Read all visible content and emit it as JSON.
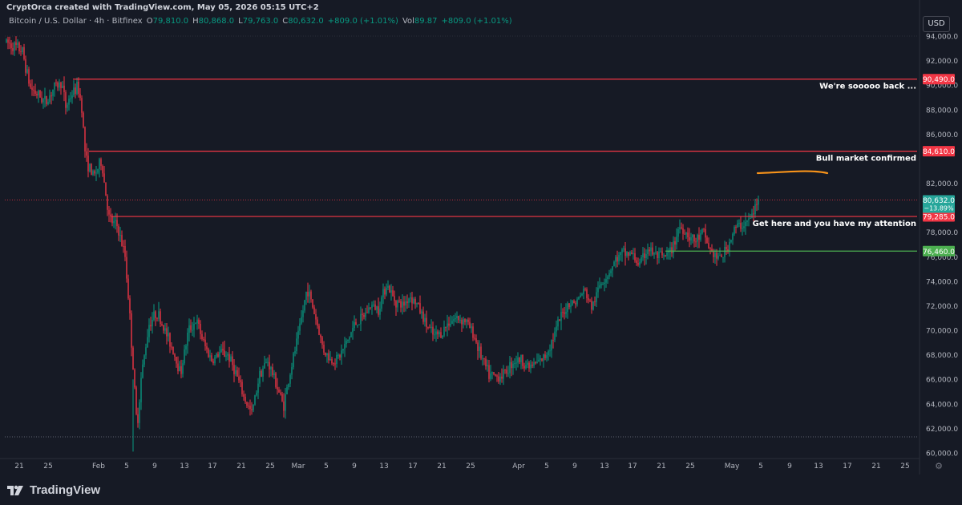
{
  "credit": "CryptOrca created with TradingView.com, May 05, 2026 05:15 UTC+2",
  "legend": {
    "symbol": "Bitcoin / U.S. Dollar · 4h · Bitfinex",
    "o_label": "O",
    "o_value": "79,810.0",
    "h_label": "H",
    "h_value": "80,868.0",
    "l_label": "L",
    "l_value": "79,763.0",
    "c_label": "C",
    "c_value": "80,632.0",
    "change": "+809.0 (+1.01%)",
    "vol_label": "Vol",
    "vol_value": "89.87",
    "vol_change": "+809.0 (+1.01%)"
  },
  "currency": "USD",
  "brand": "TradingView",
  "colors": {
    "background": "#161A25",
    "up": "#089981",
    "down": "#F23645",
    "resistance": "#F23645",
    "support": "#4CAF50",
    "current_price": "#26A69A",
    "annotation_stroke": "#F7931A",
    "text": "#B2B5BE"
  },
  "chart_data": {
    "type": "candlestick",
    "ylim": [
      59800,
      94200
    ],
    "yticks": [
      "60,000.0",
      "62,000.0",
      "64,000.0",
      "66,000.0",
      "68,000.0",
      "70,000.0",
      "72,000.0",
      "74,000.0",
      "76,000.0",
      "78,000.0",
      "82,000.0",
      "86,000.0",
      "88,000.0",
      "90,000.0",
      "92,000.0",
      "94,000.0"
    ],
    "xticks": [
      "21",
      "25",
      "Feb",
      "5",
      "9",
      "13",
      "17",
      "21",
      "25",
      "Mar",
      "5",
      "9",
      "13",
      "17",
      "21",
      "25",
      "Apr",
      "5",
      "9",
      "13",
      "17",
      "21",
      "25",
      "May",
      "5",
      "9",
      "13",
      "17",
      "21",
      "25"
    ],
    "current_price": {
      "value": 80632,
      "label": "80,632.0",
      "change": "−13.89%"
    },
    "levels": [
      {
        "value": 90490,
        "label": "90,490.0",
        "text": "We're sooooo back ...",
        "color": "resistance"
      },
      {
        "value": 84610,
        "label": "84,610.0",
        "text": "Bull market confirmed",
        "color": "resistance"
      },
      {
        "value": 79285,
        "label": "79,285.0",
        "text": "Get here and you have my attention",
        "color": "resistance"
      },
      {
        "value": 76460,
        "label": "76,460.0",
        "text": "",
        "color": "support"
      }
    ],
    "price_path": [
      [
        0,
        93500
      ],
      [
        2,
        92800
      ],
      [
        3,
        89800
      ],
      [
        4,
        89200
      ],
      [
        5,
        88600
      ],
      [
        6,
        89800
      ],
      [
        7,
        90200
      ],
      [
        7.5,
        88200
      ],
      [
        8,
        89000
      ],
      [
        9,
        89900
      ],
      [
        9.5,
        88400
      ],
      [
        10,
        84000
      ],
      [
        11,
        82500
      ],
      [
        12,
        83800
      ],
      [
        13,
        79000
      ],
      [
        14,
        78500
      ],
      [
        15,
        76000
      ],
      [
        15.5,
        72000
      ],
      [
        16,
        67000
      ],
      [
        16.5,
        62000
      ],
      [
        17,
        66000
      ],
      [
        18,
        70500
      ],
      [
        19,
        71500
      ],
      [
        20,
        70000
      ],
      [
        21,
        68500
      ],
      [
        22,
        66500
      ],
      [
        23,
        70000
      ],
      [
        24,
        70800
      ],
      [
        25,
        68800
      ],
      [
        26,
        67500
      ],
      [
        27,
        68200
      ],
      [
        28,
        68000
      ],
      [
        29,
        66500
      ],
      [
        30,
        64500
      ],
      [
        31,
        63200
      ],
      [
        32,
        66500
      ],
      [
        33,
        67500
      ],
      [
        34,
        65800
      ],
      [
        35,
        63800
      ],
      [
        36,
        67000
      ],
      [
        37,
        70000
      ],
      [
        38,
        73500
      ],
      [
        39,
        71200
      ],
      [
        40,
        68500
      ],
      [
        41,
        67500
      ],
      [
        42,
        67800
      ],
      [
        43,
        69000
      ],
      [
        44,
        70500
      ],
      [
        45,
        71000
      ],
      [
        46,
        72000
      ],
      [
        47,
        71800
      ],
      [
        48,
        73800
      ],
      [
        49,
        72500
      ],
      [
        50,
        72000
      ],
      [
        51,
        72800
      ],
      [
        52,
        72000
      ],
      [
        53,
        70500
      ],
      [
        54,
        69500
      ],
      [
        55,
        69800
      ],
      [
        56,
        70800
      ],
      [
        57,
        71000
      ],
      [
        58,
        70800
      ],
      [
        59,
        69700
      ],
      [
        60,
        67800
      ],
      [
        61,
        66300
      ],
      [
        62,
        66200
      ],
      [
        63,
        66500
      ],
      [
        64,
        67500
      ],
      [
        65,
        67600
      ],
      [
        66,
        67000
      ],
      [
        67,
        67300
      ],
      [
        68,
        67800
      ],
      [
        69,
        69300
      ],
      [
        70,
        71000
      ],
      [
        71,
        72200
      ],
      [
        72,
        72300
      ],
      [
        73,
        73300
      ],
      [
        74,
        71800
      ],
      [
        75,
        73800
      ],
      [
        76,
        74600
      ],
      [
        77,
        75800
      ],
      [
        78,
        76300
      ],
      [
        79,
        76200
      ],
      [
        80,
        75300
      ],
      [
        81,
        76700
      ],
      [
        82,
        76100
      ],
      [
        83,
        75900
      ],
      [
        84,
        76400
      ],
      [
        85,
        78500
      ],
      [
        86,
        77900
      ],
      [
        87,
        77200
      ],
      [
        88,
        78000
      ],
      [
        89,
        76400
      ],
      [
        90,
        75800
      ],
      [
        91,
        76600
      ],
      [
        92,
        78300
      ],
      [
        93,
        78600
      ],
      [
        94,
        79100
      ],
      [
        95,
        80632
      ]
    ],
    "annotation": {
      "type": "freehand",
      "points": [
        [
          945,
          216
        ],
        [
          978,
          215
        ],
        [
          1010,
          214
        ],
        [
          1032,
          216
        ]
      ]
    }
  }
}
